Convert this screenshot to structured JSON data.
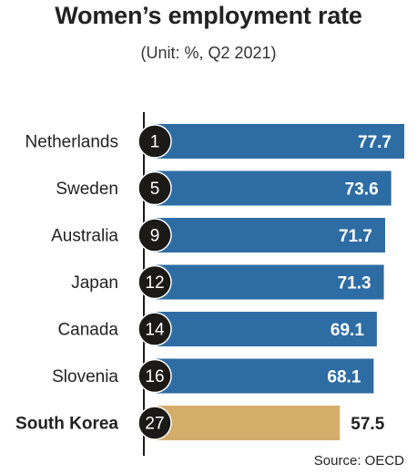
{
  "title": "Women’s employment rate",
  "subtitle": "(Unit: %, Q2 2021)",
  "source": "Source: OECD",
  "colors": {
    "bar": "#2e6da4",
    "highlight_bar": "#d4ad6b",
    "rank_circle": "#1c1a17",
    "axis": "#1c1a17"
  },
  "chart_data": {
    "type": "bar",
    "orientation": "horizontal",
    "categories": [
      "Netherlands",
      "Sweden",
      "Australia",
      "Japan",
      "Canada",
      "Slovenia",
      "South Korea"
    ],
    "ranks": [
      "1",
      "5",
      "9",
      "12",
      "14",
      "16",
      "27"
    ],
    "values": [
      77.7,
      73.6,
      71.7,
      71.3,
      69.1,
      68.1,
      57.5
    ],
    "value_labels": [
      "77.7",
      "73.6",
      "71.7",
      "71.3",
      "69.1",
      "68.1",
      "57.5"
    ],
    "highlight": "South Korea",
    "xlim": [
      0,
      77.7
    ],
    "title": "Women’s employment rate",
    "subtitle": "(Unit: %, Q2 2021)"
  }
}
